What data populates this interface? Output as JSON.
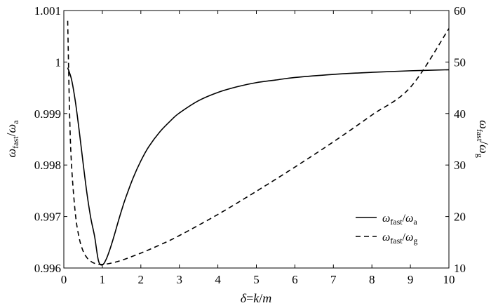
{
  "chart_data": {
    "type": "line",
    "xlabel": {
      "sym1": "δ",
      "eq": "=",
      "sym2": "k",
      "slash": "/",
      "sym3": "m"
    },
    "ylabel_left": {
      "num": "ω",
      "num_sub": "fast",
      "slash": "/",
      "den": "ω",
      "den_sub": "a"
    },
    "ylabel_right": {
      "num": "ω",
      "num_sub": "fast",
      "slash": "/",
      "den": "ω",
      "den_sub": "g"
    },
    "xlim": [
      0,
      10
    ],
    "ylim_left": [
      0.996,
      1.001
    ],
    "ylim_right": [
      10,
      60
    ],
    "x_ticks": [
      "0",
      "1",
      "2",
      "3",
      "4",
      "5",
      "6",
      "7",
      "8",
      "9",
      "10"
    ],
    "y_left_ticks": [
      "0.996",
      "0.997",
      "0.998",
      "0.999",
      "1",
      "1.001"
    ],
    "y_right_ticks": [
      "10",
      "20",
      "30",
      "40",
      "50",
      "60"
    ],
    "grid": false,
    "legend_position": "bottom-right",
    "series": [
      {
        "name": {
          "num": "ω",
          "num_sub": "fast",
          "slash": "/",
          "den": "ω",
          "den_sub": "a"
        },
        "axis": "left",
        "style": "solid",
        "x": [
          0.1,
          0.2,
          0.3,
          0.4,
          0.5,
          0.6,
          0.7,
          0.8,
          0.9,
          1.0,
          1.1,
          1.2,
          1.3,
          1.4,
          1.5,
          1.6,
          1.8,
          2.0,
          2.2,
          2.5,
          2.8,
          3.0,
          3.5,
          4.0,
          4.5,
          5.0,
          5.5,
          6.0,
          7.0,
          8.0,
          9.0,
          10.0
        ],
        "y": [
          0.99989,
          0.99966,
          0.99923,
          0.99866,
          0.99804,
          0.99745,
          0.99697,
          0.99661,
          0.99614,
          0.99606,
          0.99617,
          0.99637,
          0.99661,
          0.99687,
          0.99712,
          0.99735,
          0.99775,
          0.99808,
          0.99835,
          0.99865,
          0.99888,
          0.99901,
          0.99925,
          0.99941,
          0.99952,
          0.9996,
          0.99965,
          0.9997,
          0.99976,
          0.9998,
          0.99983,
          0.99985
        ]
      },
      {
        "name": {
          "num": "ω",
          "num_sub": "fast",
          "slash": "/",
          "den": "ω",
          "den_sub": "g"
        },
        "axis": "right",
        "style": "dashed",
        "x": [
          0.1,
          0.15,
          0.2,
          0.3,
          0.4,
          0.5,
          0.6,
          0.7,
          0.8,
          0.9,
          1.0,
          1.2,
          1.5,
          2.0,
          2.5,
          3.0,
          4.0,
          5.0,
          6.0,
          7.0,
          8.0,
          9.0,
          10.0
        ],
        "y": [
          58.0,
          40.0,
          30.0,
          20.5,
          15.8,
          13.3,
          12.0,
          11.3,
          10.9,
          10.75,
          10.7,
          10.9,
          11.5,
          12.9,
          14.5,
          16.3,
          20.4,
          24.9,
          29.6,
          34.5,
          39.7,
          45.1,
          56.5
        ]
      }
    ]
  }
}
